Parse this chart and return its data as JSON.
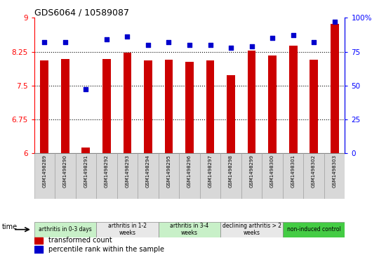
{
  "title": "GDS6064 / 10589087",
  "samples": [
    "GSM1498289",
    "GSM1498290",
    "GSM1498291",
    "GSM1498292",
    "GSM1498293",
    "GSM1498294",
    "GSM1498295",
    "GSM1498296",
    "GSM1498297",
    "GSM1498298",
    "GSM1498299",
    "GSM1498300",
    "GSM1498301",
    "GSM1498302",
    "GSM1498303"
  ],
  "transformed_count": [
    8.05,
    8.08,
    6.12,
    8.08,
    8.22,
    8.05,
    8.07,
    8.02,
    8.06,
    7.72,
    8.28,
    8.17,
    8.38,
    8.07,
    8.87
  ],
  "percentile_rank": [
    82,
    82,
    47,
    84,
    86,
    80,
    82,
    80,
    80,
    78,
    79,
    85,
    87,
    82,
    97
  ],
  "groups": [
    {
      "label": "arthritis in 0-3 days",
      "start": 0,
      "end": 3,
      "color": "#c8f0c8"
    },
    {
      "label": "arthritis in 1-2\nweeks",
      "start": 3,
      "end": 6,
      "color": "#e8e8e8"
    },
    {
      "label": "arthritis in 3-4\nweeks",
      "start": 6,
      "end": 9,
      "color": "#c8f0c8"
    },
    {
      "label": "declining arthritis > 2\nweeks",
      "start": 9,
      "end": 12,
      "color": "#e8e8e8"
    },
    {
      "label": "non-induced control",
      "start": 12,
      "end": 15,
      "color": "#44cc44"
    }
  ],
  "ylim_left": [
    6,
    9
  ],
  "ylim_right": [
    0,
    100
  ],
  "yticks_left": [
    6,
    6.75,
    7.5,
    8.25,
    9
  ],
  "yticks_right": [
    0,
    25,
    50,
    75,
    100
  ],
  "bar_color": "#cc0000",
  "dot_color": "#0000cc",
  "bar_width": 0.4
}
